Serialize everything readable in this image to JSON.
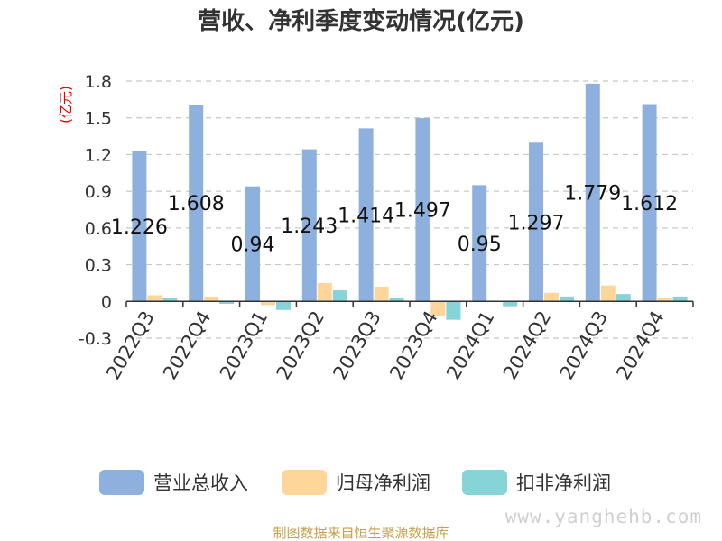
{
  "chart_data": {
    "type": "bar",
    "title": "营收、净利季度变动情况(亿元)",
    "ylabel": "(亿元)",
    "categories": [
      "2022Q3",
      "2022Q4",
      "2023Q1",
      "2023Q2",
      "2023Q3",
      "2023Q4",
      "2024Q1",
      "2024Q2",
      "2024Q3",
      "2024Q4"
    ],
    "series": [
      {
        "name": "营业总收入",
        "color": "#8eb0de",
        "values": [
          1.226,
          1.608,
          0.94,
          1.243,
          1.414,
          1.497,
          0.95,
          1.297,
          1.779,
          1.612
        ]
      },
      {
        "name": "归母净利润",
        "color": "#ffd699",
        "values": [
          0.05,
          0.04,
          -0.03,
          0.15,
          0.12,
          -0.12,
          0.0,
          0.07,
          0.13,
          0.03
        ]
      },
      {
        "name": "扣非净利润",
        "color": "#86d3d8",
        "values": [
          0.03,
          -0.02,
          -0.07,
          0.09,
          0.03,
          -0.15,
          -0.04,
          0.04,
          0.06,
          0.04
        ]
      }
    ],
    "data_labels": [
      "1.226",
      "1.608",
      "0.94",
      "1.243",
      "1.414",
      "1.497",
      "0.95",
      "1.297",
      "1.779",
      "1.612"
    ],
    "yticks": [
      "-0.3",
      "0",
      "0.3",
      "0.6",
      "0.9",
      "1.2",
      "1.5",
      "1.8"
    ],
    "ylim": [
      -0.3,
      1.8
    ],
    "grid": true,
    "legend_position": "bottom"
  },
  "source": "制图数据来自恒生聚源数据库",
  "watermark": "www.yanghehb.com"
}
